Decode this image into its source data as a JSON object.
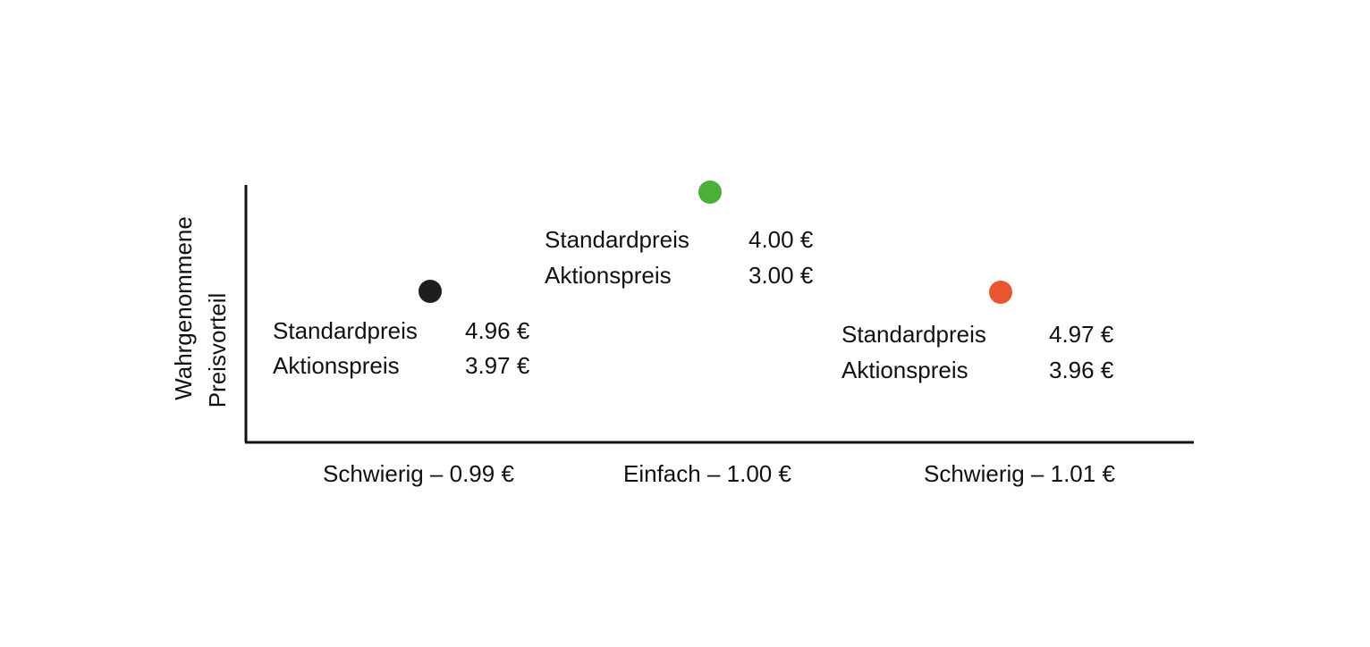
{
  "axis": {
    "y_label": [
      "Wahrgenommene",
      "Preisvorteil"
    ]
  },
  "groups": [
    {
      "label": "Schwierig – 0.99 €",
      "rows": [
        [
          "Standardpreis",
          "4.96 €"
        ],
        [
          "Aktionspreis",
          "3.97 €"
        ]
      ]
    },
    {
      "label": "Einfach – 1.00 €",
      "rows": [
        [
          "Standardpreis",
          "4.00 €"
        ],
        [
          "Aktionspreis",
          "3.00 €"
        ]
      ]
    },
    {
      "label": "Schwierig – 1.01 €",
      "rows": [
        [
          "Standardpreis",
          "4.97 €"
        ],
        [
          "Aktionspreis",
          "3.96 €"
        ]
      ]
    }
  ]
}
